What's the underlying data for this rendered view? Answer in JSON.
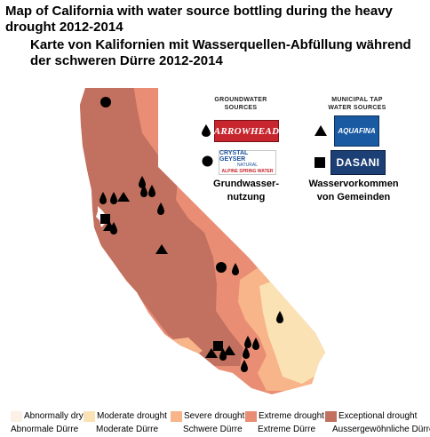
{
  "title_en": "Map of California with water source bottling during the heavy drought 2012-2014",
  "title_de": "Karte von Kalifornien mit Wasserquellen-Abfüllung während der schweren Dürre 2012-2014",
  "groundwater": {
    "header_line1": "GROUNDWATER",
    "header_line2": "SOURCES",
    "brand_drop": "ARROWHEAD",
    "brand_circle_line1": "CRYSTAL GEYSER",
    "brand_circle_line2": "NATURAL",
    "brand_circle_line3": "ALPINE SPRING WATER",
    "caption_line1": "Grundwasser-",
    "caption_line2": "nutzung",
    "drop_icon": "drop-icon",
    "circle_icon": "circle-icon"
  },
  "municipal": {
    "header_line1": "MUNICIPAL TAP",
    "header_line2": "WATER SOURCES",
    "brand_triangle": "AQUAFINA",
    "brand_square": "DASANI",
    "caption_line1": "Wasservorkommen",
    "caption_line2": "von Gemeinden",
    "triangle_icon": "triangle-icon",
    "square_icon": "square-icon"
  },
  "drought_legend": [
    {
      "en": "Abnormally dry",
      "de": "Abnormale Dürre",
      "color": "#fbf1e6"
    },
    {
      "en": "Moderate drought",
      "de": "Moderate Dürre",
      "color": "#fbe2b4"
    },
    {
      "en": "Severe drought",
      "de": "Schwere Dürre",
      "color": "#f7b589"
    },
    {
      "en": "Extreme drought",
      "de": "Extreme Dürre",
      "color": "#e98d74"
    },
    {
      "en": "Exceptional drought",
      "de": "Aussergewöhnliche Dürre",
      "color": "#c2705f"
    }
  ],
  "colors": {
    "exceptional": "#c2705f",
    "extreme": "#e98d74",
    "severe": "#f7b589",
    "moderate": "#fbe2b4",
    "abnormal": "#fbf1e6",
    "arrowhead_red": "#c8262e",
    "aquafina_blue": "#1a5aa3",
    "dasani_navy": "#1c3f76"
  }
}
